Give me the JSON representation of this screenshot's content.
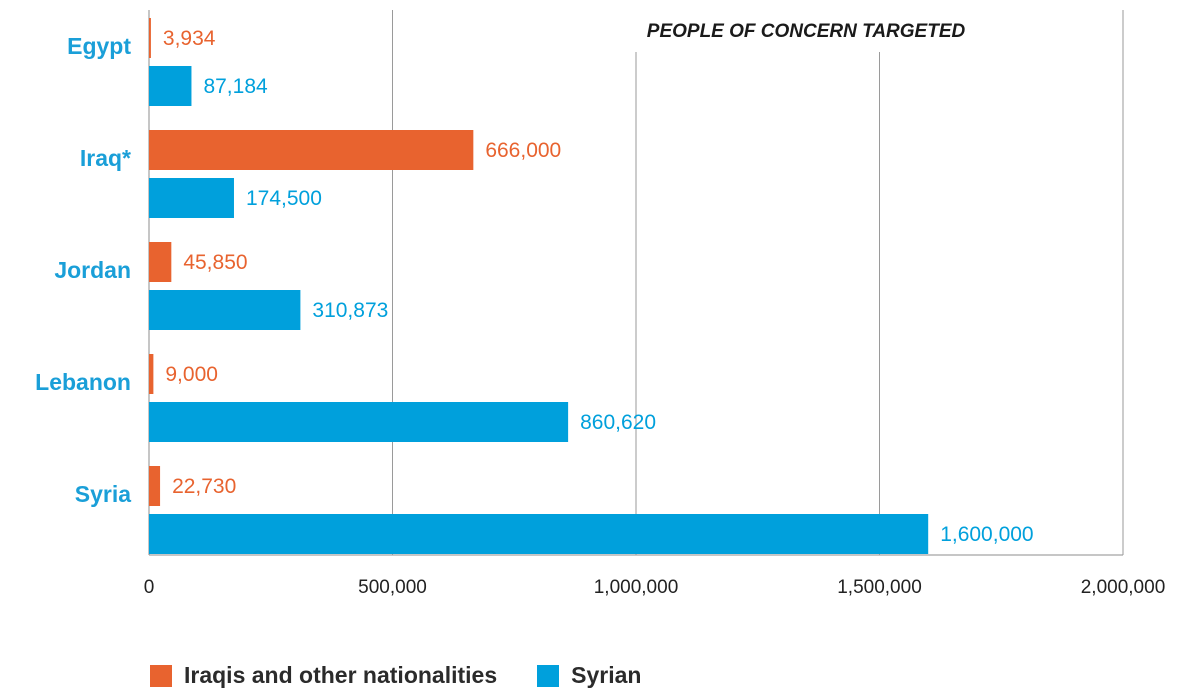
{
  "chart_data": {
    "type": "bar",
    "orientation": "horizontal",
    "title": "PEOPLE OF CONCERN TARGETED",
    "categories": [
      "Egypt",
      "Iraq*",
      "Jordan",
      "Lebanon",
      "Syria"
    ],
    "series": [
      {
        "name": "Iraqis and other nationalities",
        "color": "#e8632f",
        "values": [
          3934,
          666000,
          45850,
          9000,
          22730
        ],
        "labels": [
          "3,934",
          "666,000",
          "45,850",
          "9,000",
          "22,730"
        ]
      },
      {
        "name": "Syrian",
        "color": "#00a0dc",
        "values": [
          87184,
          174500,
          310873,
          860620,
          1600000
        ],
        "labels": [
          "87,184",
          "174,500",
          "310,873",
          "860,620",
          "1,600,000"
        ]
      }
    ],
    "xlim": [
      0,
      2000000
    ],
    "xticks": [
      0,
      500000,
      1000000,
      1500000,
      2000000
    ],
    "xtick_labels": [
      "0",
      "500,000",
      "1,000,000",
      "1,500,000",
      "2,000,000"
    ],
    "category_label_color": "#1a9fd8",
    "grid": "vertical",
    "legend_position": "bottom"
  }
}
